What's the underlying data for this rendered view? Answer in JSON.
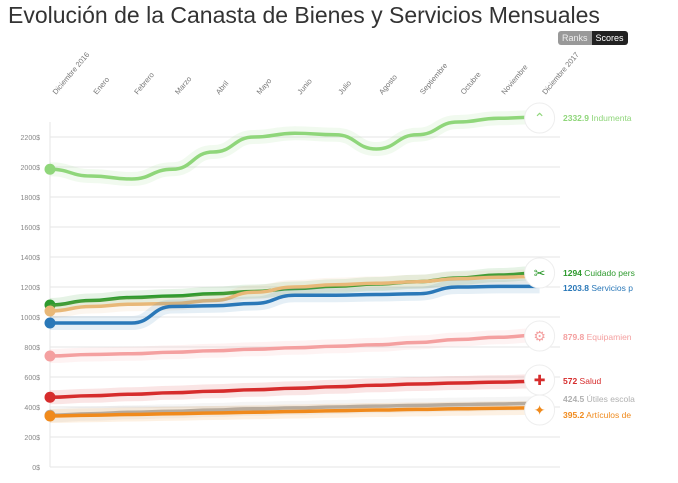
{
  "title": "Evolución de la Canasta de Bienes y Servicios Mensuales",
  "toggle": {
    "ranks": "Ranks",
    "scores": "Scores",
    "active": "Scores"
  },
  "chart_data": {
    "type": "line",
    "title": "Evolución de la Canasta de Bienes y Servicios Mensuales",
    "categories": [
      "Diciembre 2016",
      "Enero",
      "Febrero",
      "Marzo",
      "Abril",
      "Mayo",
      "Junio",
      "Julio",
      "Agosto",
      "Septiembre",
      "Octubre",
      "Noviembre",
      "Diciembre 2017"
    ],
    "ylim": [
      0,
      2400
    ],
    "yticks": [
      "0$",
      "200$",
      "400$",
      "600$",
      "800$",
      "1000$",
      "1200$",
      "1400$",
      "1600$",
      "1800$",
      "2000$",
      "2200$"
    ],
    "grid": true,
    "series": [
      {
        "name": "Indumentaria",
        "label": "2332.9 Indumenta",
        "value_label": "2332.9",
        "color": "#8fd67a",
        "icon": "hanger-icon",
        "values": [
          1985,
          1940,
          1920,
          1985,
          2100,
          2200,
          2225,
          2215,
          2120,
          2215,
          2300,
          2325,
          2332.9
        ]
      },
      {
        "name": "Cuidado personal",
        "label": "1294 Cuidado pers",
        "value_label": "1294",
        "color": "#2e9a2e",
        "icon": "hair-clipper-icon",
        "values": [
          1080,
          1110,
          1130,
          1140,
          1155,
          1170,
          1190,
          1205,
          1220,
          1235,
          1260,
          1280,
          1294
        ]
      },
      {
        "name": "",
        "label": "",
        "value_label": "",
        "color": "#e8b878",
        "icon": "",
        "values": [
          1040,
          1070,
          1085,
          1090,
          1110,
          1165,
          1200,
          1215,
          1225,
          1235,
          1255,
          1265,
          1271
        ]
      },
      {
        "name": "Servicios p",
        "label": "1203.8 Servicios p",
        "value_label": "1203.8",
        "color": "#2a78b8",
        "icon": "",
        "values": [
          960,
          960,
          960,
          1070,
          1075,
          1090,
          1145,
          1145,
          1150,
          1155,
          1200,
          1203.8,
          1203.8
        ]
      },
      {
        "name": "Equipamiento",
        "label": "879.8 Equipamien",
        "value_label": "879.8",
        "color": "#f4a0a0",
        "icon": "appliance-icon",
        "values": [
          740,
          750,
          755,
          765,
          775,
          785,
          795,
          805,
          815,
          830,
          850,
          865,
          879.8
        ]
      },
      {
        "name": "Salud",
        "label": "572 Salud",
        "value_label": "572",
        "color": "#d62c2c",
        "icon": "hospital-icon",
        "values": [
          465,
          475,
          485,
          495,
          505,
          515,
          525,
          535,
          545,
          553,
          560,
          566,
          572
        ]
      },
      {
        "name": "Útiles escolares",
        "label": "424.5 Útiles escola",
        "value_label": "424.5",
        "color": "#b0b0b0",
        "icon": "",
        "values": [
          345,
          355,
          365,
          372,
          380,
          388,
          394,
          400,
          406,
          411,
          416,
          420,
          424.5
        ]
      },
      {
        "name": "Artículos de",
        "label": "395.2 Artículos de",
        "value_label": "395.2",
        "color": "#f08a1c",
        "icon": "cleaning-icon",
        "values": [
          340,
          345,
          350,
          355,
          360,
          365,
          370,
          375,
          380,
          384,
          388,
          392,
          395.2
        ]
      }
    ]
  }
}
